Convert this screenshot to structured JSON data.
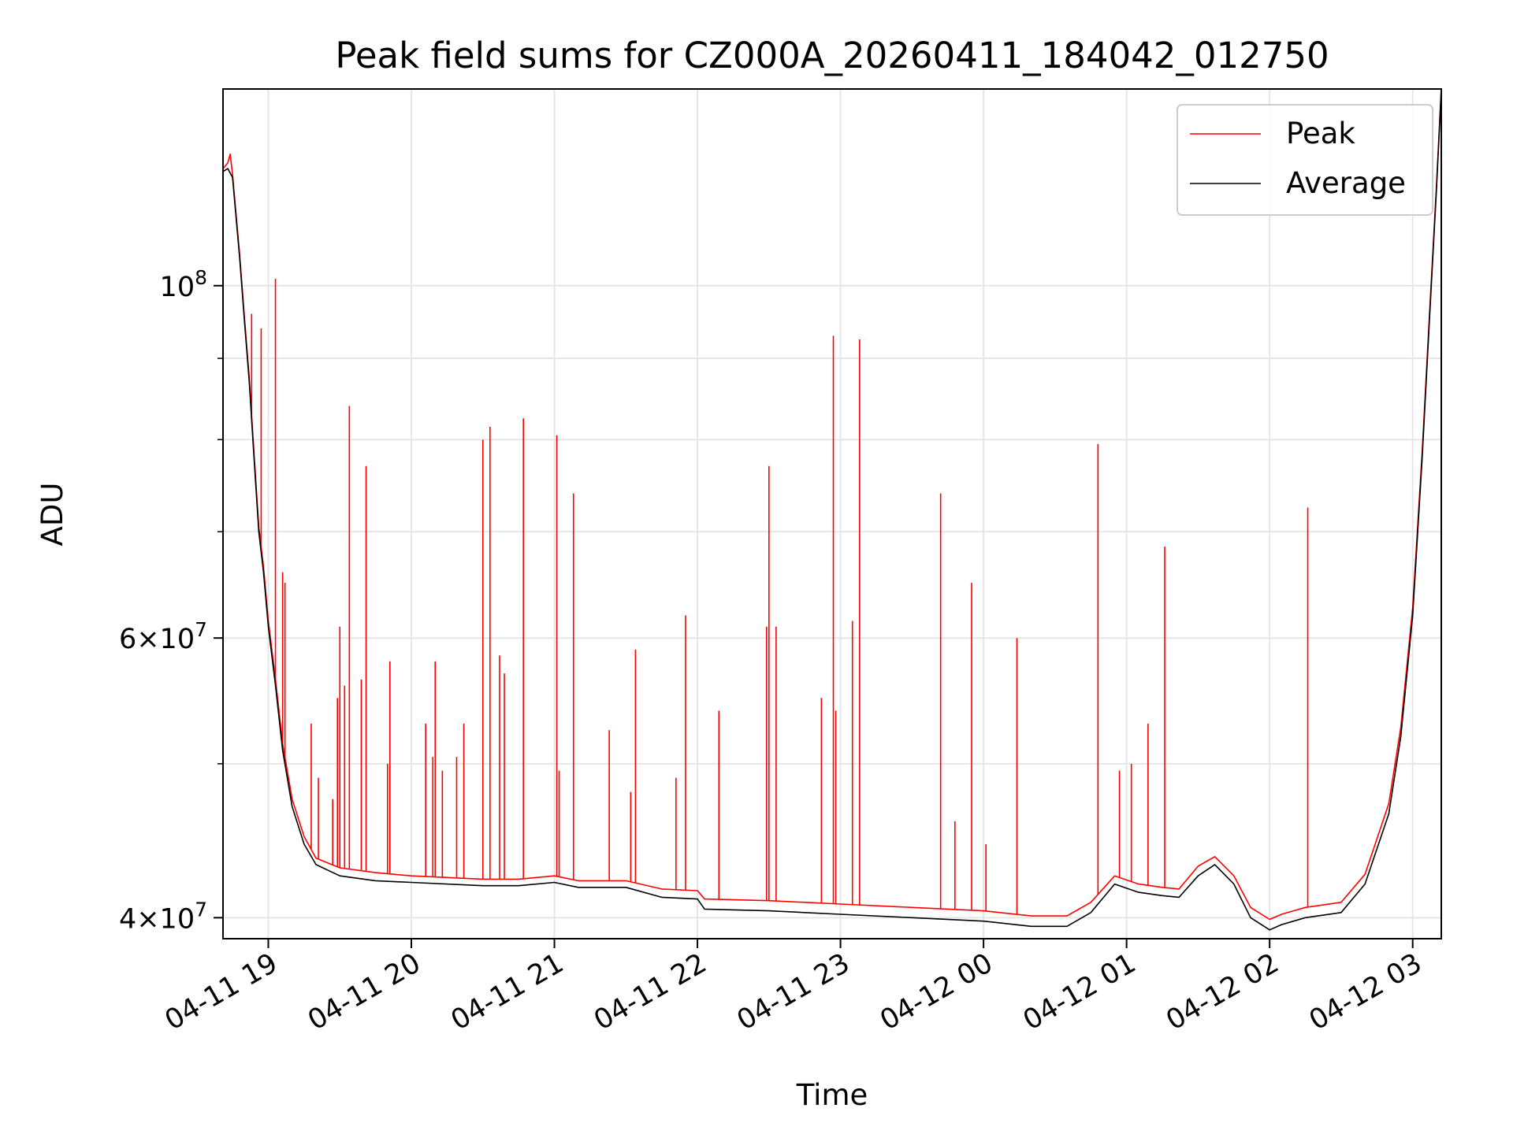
{
  "chart_data": {
    "type": "line",
    "title": "Peak field sums for CZ000A_20260411_184042_012750",
    "xlabel": "Time",
    "ylabel": "ADU",
    "yscale": "log",
    "grid": true,
    "legend_position": "top-right",
    "xlim": [
      "2026-04-11 18:41",
      "2026-04-12 03:12"
    ],
    "ylim": [
      38800000,
      133000000
    ],
    "x_ticks": [
      {
        "value": "2026-04-11 19:00",
        "label": "04-11 19"
      },
      {
        "value": "2026-04-11 20:00",
        "label": "04-11 20"
      },
      {
        "value": "2026-04-11 21:00",
        "label": "04-11 21"
      },
      {
        "value": "2026-04-11 22:00",
        "label": "04-11 22"
      },
      {
        "value": "2026-04-11 23:00",
        "label": "04-11 23"
      },
      {
        "value": "2026-04-12 00:00",
        "label": "04-12 00"
      },
      {
        "value": "2026-04-12 01:00",
        "label": "04-12 01"
      },
      {
        "value": "2026-04-12 02:00",
        "label": "04-12 02"
      },
      {
        "value": "2026-04-12 03:00",
        "label": "04-12 03"
      }
    ],
    "y_ticks": [
      {
        "value": 40000000,
        "mantissa": "4",
        "exp": "7"
      },
      {
        "value": 60000000,
        "mantissa": "6",
        "exp": "7"
      },
      {
        "value": 100000000,
        "mantissa": "",
        "exp": "8"
      }
    ],
    "y_minor_ticks": [
      50000000,
      70000000,
      80000000,
      90000000
    ],
    "series": [
      {
        "name": "Average",
        "color": "#000000",
        "points": [
          [
            "2026-04-11 18:41",
            118000000
          ],
          [
            "2026-04-11 18:43",
            118500000
          ],
          [
            "2026-04-11 18:45",
            117000000
          ],
          [
            "2026-04-11 18:48",
            104000000
          ],
          [
            "2026-04-11 18:50",
            95000000
          ],
          [
            "2026-04-11 18:52",
            87000000
          ],
          [
            "2026-04-11 18:54",
            78000000
          ],
          [
            "2026-04-11 18:56",
            70000000
          ],
          [
            "2026-04-11 18:58",
            66000000
          ],
          [
            "2026-04-11 19:00",
            61000000
          ],
          [
            "2026-04-11 19:03",
            56000000
          ],
          [
            "2026-04-11 19:06",
            51000000
          ],
          [
            "2026-04-11 19:10",
            47000000
          ],
          [
            "2026-04-11 19:15",
            44500000
          ],
          [
            "2026-04-11 19:20",
            43200000
          ],
          [
            "2026-04-11 19:30",
            42500000
          ],
          [
            "2026-04-11 19:45",
            42200000
          ],
          [
            "2026-04-11 20:00",
            42100000
          ],
          [
            "2026-04-11 20:30",
            41900000
          ],
          [
            "2026-04-11 20:45",
            41900000
          ],
          [
            "2026-04-11 21:00",
            42100000
          ],
          [
            "2026-04-11 21:10",
            41800000
          ],
          [
            "2026-04-11 21:30",
            41800000
          ],
          [
            "2026-04-11 21:45",
            41200000
          ],
          [
            "2026-04-11 22:00",
            41100000
          ],
          [
            "2026-04-11 22:03",
            40500000
          ],
          [
            "2026-04-11 22:30",
            40400000
          ],
          [
            "2026-04-11 23:00",
            40200000
          ],
          [
            "2026-04-11 23:30",
            40000000
          ],
          [
            "2026-04-12 00:00",
            39800000
          ],
          [
            "2026-04-12 00:20",
            39500000
          ],
          [
            "2026-04-12 00:35",
            39500000
          ],
          [
            "2026-04-12 00:45",
            40300000
          ],
          [
            "2026-04-12 00:55",
            42000000
          ],
          [
            "2026-04-12 01:05",
            41500000
          ],
          [
            "2026-04-12 01:15",
            41300000
          ],
          [
            "2026-04-12 01:22",
            41200000
          ],
          [
            "2026-04-12 01:30",
            42500000
          ],
          [
            "2026-04-12 01:37",
            43200000
          ],
          [
            "2026-04-12 01:45",
            42000000
          ],
          [
            "2026-04-12 01:52",
            40000000
          ],
          [
            "2026-04-12 02:00",
            39300000
          ],
          [
            "2026-04-12 02:05",
            39600000
          ],
          [
            "2026-04-12 02:15",
            40000000
          ],
          [
            "2026-04-12 02:30",
            40300000
          ],
          [
            "2026-04-12 02:40",
            42000000
          ],
          [
            "2026-04-12 02:50",
            46500000
          ],
          [
            "2026-04-12 02:55",
            52000000
          ],
          [
            "2026-04-12 03:00",
            62000000
          ],
          [
            "2026-04-12 03:04",
            78000000
          ],
          [
            "2026-04-12 03:07",
            95000000
          ],
          [
            "2026-04-12 03:10",
            115000000
          ],
          [
            "2026-04-12 03:12",
            133000000
          ]
        ]
      },
      {
        "name": "Peak",
        "color": "#ff0000",
        "points": [
          [
            "2026-04-11 18:41",
            118500000
          ],
          [
            "2026-04-11 18:43",
            119500000
          ],
          [
            "2026-04-11 18:44",
            121000000
          ],
          [
            "2026-04-11 18:45",
            117500000
          ],
          [
            "2026-04-11 18:48",
            104500000
          ],
          [
            "2026-04-11 18:50",
            95500000
          ],
          [
            "2026-04-11 18:52",
            87500000
          ],
          [
            "2026-04-11 18:54",
            78500000
          ],
          [
            "2026-04-11 18:56",
            70500000
          ],
          [
            "2026-04-11 18:58",
            66500000
          ],
          [
            "2026-04-11 19:00",
            61500000
          ],
          [
            "2026-04-11 19:03",
            56500000
          ],
          [
            "2026-04-11 19:06",
            51500000
          ],
          [
            "2026-04-11 19:10",
            47500000
          ],
          [
            "2026-04-11 19:15",
            45000000
          ],
          [
            "2026-04-11 19:20",
            43600000
          ],
          [
            "2026-04-11 19:30",
            43000000
          ],
          [
            "2026-04-11 19:45",
            42700000
          ],
          [
            "2026-04-11 20:00",
            42500000
          ],
          [
            "2026-04-11 20:30",
            42300000
          ],
          [
            "2026-04-11 20:45",
            42300000
          ],
          [
            "2026-04-11 21:00",
            42500000
          ],
          [
            "2026-04-11 21:10",
            42200000
          ],
          [
            "2026-04-11 21:30",
            42200000
          ],
          [
            "2026-04-11 21:45",
            41700000
          ],
          [
            "2026-04-11 22:00",
            41600000
          ],
          [
            "2026-04-11 22:03",
            41100000
          ],
          [
            "2026-04-11 22:30",
            41000000
          ],
          [
            "2026-04-11 23:00",
            40800000
          ],
          [
            "2026-04-11 23:30",
            40600000
          ],
          [
            "2026-04-12 00:00",
            40400000
          ],
          [
            "2026-04-12 00:20",
            40100000
          ],
          [
            "2026-04-12 00:35",
            40100000
          ],
          [
            "2026-04-12 00:45",
            40900000
          ],
          [
            "2026-04-12 00:55",
            42500000
          ],
          [
            "2026-04-12 01:05",
            42000000
          ],
          [
            "2026-04-12 01:15",
            41800000
          ],
          [
            "2026-04-12 01:22",
            41700000
          ],
          [
            "2026-04-12 01:30",
            43100000
          ],
          [
            "2026-04-12 01:37",
            43700000
          ],
          [
            "2026-04-12 01:45",
            42500000
          ],
          [
            "2026-04-12 01:52",
            40600000
          ],
          [
            "2026-04-12 02:00",
            39900000
          ],
          [
            "2026-04-12 02:05",
            40200000
          ],
          [
            "2026-04-12 02:15",
            40600000
          ],
          [
            "2026-04-12 02:30",
            40900000
          ],
          [
            "2026-04-12 02:40",
            42600000
          ],
          [
            "2026-04-12 02:50",
            47200000
          ],
          [
            "2026-04-12 02:55",
            52700000
          ],
          [
            "2026-04-12 03:00",
            62700000
          ],
          [
            "2026-04-12 03:04",
            78700000
          ],
          [
            "2026-04-12 03:07",
            95700000
          ],
          [
            "2026-04-12 03:10",
            115700000
          ],
          [
            "2026-04-12 03:12",
            133000000
          ]
        ],
        "spikes": [
          [
            "2026-04-11 18:53",
            96000000
          ],
          [
            "2026-04-11 18:57",
            94000000
          ],
          [
            "2026-04-11 19:03",
            101000000
          ],
          [
            "2026-04-11 19:06",
            66000000
          ],
          [
            "2026-04-11 19:07",
            65000000
          ],
          [
            "2026-04-11 19:18",
            53000000
          ],
          [
            "2026-04-11 19:21",
            49000000
          ],
          [
            "2026-04-11 19:27",
            47500000
          ],
          [
            "2026-04-11 19:29",
            55000000
          ],
          [
            "2026-04-11 19:30",
            61000000
          ],
          [
            "2026-04-11 19:32",
            56000000
          ],
          [
            "2026-04-11 19:34",
            84000000
          ],
          [
            "2026-04-11 19:39",
            56500000
          ],
          [
            "2026-04-11 19:41",
            77000000
          ],
          [
            "2026-04-11 19:50",
            50000000
          ],
          [
            "2026-04-11 19:51",
            58000000
          ],
          [
            "2026-04-11 20:06",
            53000000
          ],
          [
            "2026-04-11 20:09",
            50500000
          ],
          [
            "2026-04-11 20:10",
            58000000
          ],
          [
            "2026-04-11 20:13",
            49500000
          ],
          [
            "2026-04-11 20:19",
            50500000
          ],
          [
            "2026-04-11 20:22",
            53000000
          ],
          [
            "2026-04-11 20:30",
            80000000
          ],
          [
            "2026-04-11 20:33",
            81500000
          ],
          [
            "2026-04-11 20:37",
            58500000
          ],
          [
            "2026-04-11 20:39",
            57000000
          ],
          [
            "2026-04-11 20:47",
            82500000
          ],
          [
            "2026-04-11 21:01",
            80500000
          ],
          [
            "2026-04-11 21:02",
            49500000
          ],
          [
            "2026-04-11 21:08",
            74000000
          ],
          [
            "2026-04-11 21:23",
            52500000
          ],
          [
            "2026-04-11 21:32",
            48000000
          ],
          [
            "2026-04-11 21:34",
            59000000
          ],
          [
            "2026-04-11 21:51",
            49000000
          ],
          [
            "2026-04-11 21:55",
            62000000
          ],
          [
            "2026-04-11 22:09",
            54000000
          ],
          [
            "2026-04-11 22:29",
            61000000
          ],
          [
            "2026-04-11 22:30",
            77000000
          ],
          [
            "2026-04-11 22:33",
            61000000
          ],
          [
            "2026-04-11 22:52",
            55000000
          ],
          [
            "2026-04-11 22:57",
            93000000
          ],
          [
            "2026-04-11 22:58",
            54000000
          ],
          [
            "2026-04-11 23:05",
            61500000
          ],
          [
            "2026-04-11 23:08",
            92500000
          ],
          [
            "2026-04-11 23:42",
            74000000
          ],
          [
            "2026-04-11 23:48",
            46000000
          ],
          [
            "2026-04-11 23:55",
            65000000
          ],
          [
            "2026-04-12 00:01",
            44500000
          ],
          [
            "2026-04-12 00:14",
            60000000
          ],
          [
            "2026-04-12 00:48",
            79500000
          ],
          [
            "2026-04-12 00:57",
            49500000
          ],
          [
            "2026-04-12 01:02",
            50000000
          ],
          [
            "2026-04-12 01:09",
            53000000
          ],
          [
            "2026-04-12 01:16",
            68500000
          ],
          [
            "2026-04-12 02:16",
            72500000
          ]
        ]
      }
    ]
  }
}
